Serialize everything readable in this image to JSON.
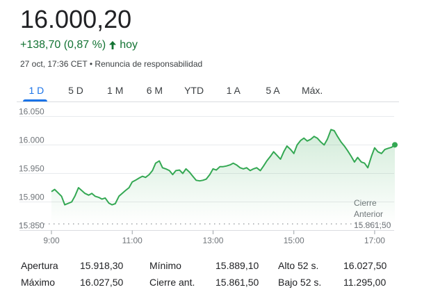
{
  "quote": {
    "price": "16.000,20",
    "change": "+138,70 (0,87 %)",
    "change_period": "hoy",
    "timestamp": "27 oct, 17:36 CET",
    "separator": "•",
    "disclaimer": "Renuncia de responsabilidad"
  },
  "tabs": [
    "1 D",
    "5 D",
    "1 M",
    "6 M",
    "YTD",
    "1 A",
    "5 A",
    "Máx."
  ],
  "active_tab": "1 D",
  "colors": {
    "line": "#34a853",
    "positive": "#137333",
    "accent": "#1a73e8"
  },
  "chart_data": {
    "type": "line",
    "x_unit": "hours",
    "xlim": [
      9,
      17.5
    ],
    "ylim": [
      15850,
      16060
    ],
    "yticks": [
      "16.050",
      "16.000",
      "15.950",
      "15.900",
      "15.850"
    ],
    "ytick_values": [
      16050,
      16000,
      15950,
      15900,
      15850
    ],
    "xticks": [
      "9:00",
      "11:00",
      "13:00",
      "15:00",
      "17:00"
    ],
    "xtick_values": [
      9,
      11,
      13,
      15,
      17
    ],
    "reference_line": {
      "label_line1": "Cierre",
      "label_line2": "Anterior",
      "value_label": "15.861,50",
      "value": 15861.5
    },
    "series": [
      {
        "x": [
          9.0,
          9.08,
          9.25,
          9.33,
          9.5,
          9.58,
          9.67,
          9.75,
          9.83,
          9.92,
          10.0,
          10.08,
          10.17,
          10.25,
          10.33,
          10.42,
          10.5,
          10.58,
          10.67,
          10.75,
          10.83,
          10.92,
          11.0,
          11.08,
          11.17,
          11.25,
          11.33,
          11.42,
          11.5,
          11.58,
          11.67,
          11.75,
          11.83,
          11.92,
          12.0,
          12.08,
          12.17,
          12.25,
          12.33,
          12.42,
          12.5,
          12.58,
          12.67,
          12.75,
          12.83,
          12.92,
          13.0,
          13.08,
          13.17,
          13.25,
          13.33,
          13.42,
          13.5,
          13.58,
          13.67,
          13.75,
          13.83,
          13.92,
          14.0,
          14.08,
          14.17,
          14.25,
          14.33,
          14.42,
          14.5,
          14.58,
          14.67,
          14.75,
          14.83,
          14.92,
          15.0,
          15.08,
          15.17,
          15.25,
          15.33,
          15.42,
          15.5,
          15.58,
          15.67,
          15.75,
          15.83,
          15.92,
          16.0,
          16.08,
          16.17,
          16.25,
          16.33,
          16.42,
          16.5,
          16.58,
          16.67,
          16.75,
          16.83,
          16.92,
          17.0,
          17.08,
          17.17,
          17.25,
          17.33,
          17.42,
          17.5
        ],
        "values": [
          15918,
          15922,
          15910,
          15895,
          15900,
          15910,
          15925,
          15920,
          15915,
          15912,
          15915,
          15910,
          15908,
          15905,
          15907,
          15898,
          15895,
          15897,
          15910,
          15915,
          15920,
          15925,
          15935,
          15938,
          15942,
          15945,
          15943,
          15948,
          15955,
          15968,
          15972,
          15960,
          15958,
          15955,
          15948,
          15955,
          15956,
          15950,
          15958,
          15952,
          15945,
          15938,
          15937,
          15938,
          15940,
          15948,
          15958,
          15956,
          15962,
          15962,
          15963,
          15965,
          15968,
          15965,
          15960,
          15958,
          15960,
          15955,
          15958,
          15960,
          15955,
          15963,
          15972,
          15980,
          15988,
          15982,
          15975,
          15988,
          15998,
          15992,
          15985,
          16000,
          16008,
          16012,
          16007,
          16010,
          16015,
          16012,
          16005,
          16000,
          16010,
          16027,
          16025,
          16015,
          16005,
          15998,
          15990,
          15980,
          15970,
          15978,
          15970,
          15968,
          15960,
          15980,
          15995,
          15988,
          15985,
          15992,
          15994,
          15996,
          16000.2
        ]
      }
    ]
  },
  "stats": [
    [
      {
        "label": "Apertura",
        "value": "15.918,30"
      },
      {
        "label": "Mínimo",
        "value": "15.889,10"
      },
      {
        "label": "Alto 52 s.",
        "value": "16.027,50"
      }
    ],
    [
      {
        "label": "Máximo",
        "value": "16.027,50"
      },
      {
        "label": "Cierre ant.",
        "value": "15.861,50"
      },
      {
        "label": "Bajo 52 s.",
        "value": "11.295,00"
      }
    ]
  ]
}
